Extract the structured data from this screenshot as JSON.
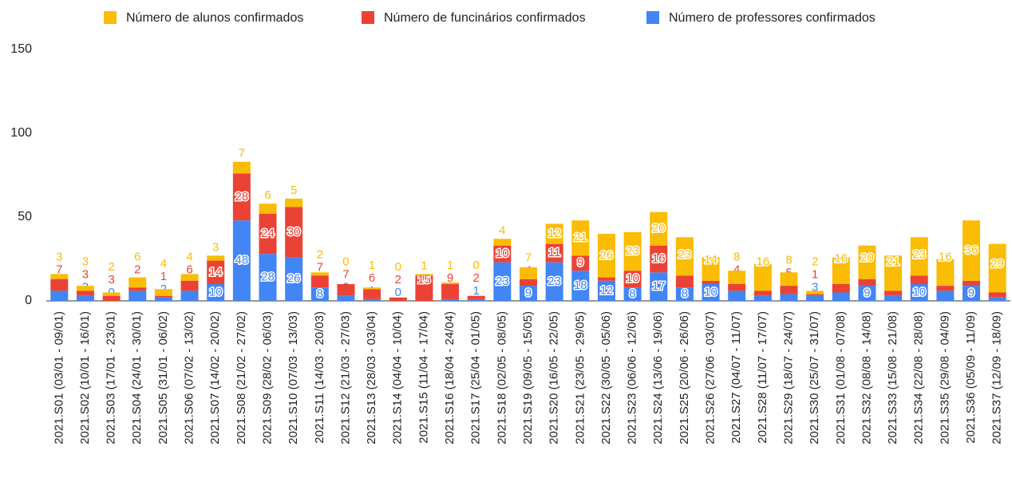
{
  "chart_data": {
    "type": "bar",
    "stacked": true,
    "categories": [
      "2021.S01 (03/01 - 09/01)",
      "2021.S02 (10/01 - 16/01)",
      "2021.S03 (17/01 - 23/01)",
      "2021.S04 (24/01 - 30/01)",
      "2021.S05 (31/01 - 06/02)",
      "2021.S06 (07/02 - 13/02)",
      "2021.S07 (14/02 - 20/02)",
      "2021.S08 (21/02 - 27/02)",
      "2021.S09 (28/02 - 06/03)",
      "2021.S10 (07/03 - 13/03)",
      "2021.S11 (14/03 - 20/03)",
      "2021.S12 (21/03 - 27/03)",
      "2021.S13 (28/03 - 03/04)",
      "2021.S14 (04/04 - 10/04)",
      "2021.S15 (11/04 - 17/04)",
      "2021.S16 (18/04 - 24/04)",
      "2021.S17 (25/04 - 01/05)",
      "2021.S18 (02/05 - 08/05)",
      "2021.S19 (09/05 - 15/05)",
      "2021.S20 (16/05 - 22/05)",
      "2021.S21 (23/05 - 29/05)",
      "2021.S22 (30/05 - 05/06)",
      "2021.S23 (06/06 - 12/06)",
      "2021.S24 (13/06 - 19/06)",
      "2021.S25 (20/06 - 26/06)",
      "2021.S26 (27/06 - 03/07)",
      "2021.S27 (04/07 - 11/07)",
      "2021.S28 (11/07 - 17/07)",
      "2021.S29 (18/07 - 24/07)",
      "2021.S30 (25/07 - 31/07)",
      "2021.S31 (01/08 - 07/08)",
      "2021.S32 (08/08 - 14/08)",
      "2021.S33 (15/08 - 21/08)",
      "2021.S34 (22/08 - 28/08)",
      "2021.S35 (29/08 - 04/09)",
      "2021.S36 (05/09 - 11/09)",
      "2021.S37 (12/09 - 18/09)"
    ],
    "series": [
      {
        "name": "Número de alunos confirmados",
        "color": "#fbbc04",
        "values": [
          3,
          3,
          2,
          6,
          4,
          4,
          3,
          7,
          6,
          5,
          2,
          0,
          1,
          0,
          1,
          1,
          0,
          4,
          7,
          12,
          21,
          26,
          23,
          20,
          23,
          14,
          8,
          16,
          8,
          2,
          16,
          20,
          21,
          23,
          16,
          36,
          29
        ]
      },
      {
        "name": "Número de funcinários confirmados",
        "color": "#ea4335",
        "values": [
          7,
          3,
          3,
          2,
          1,
          6,
          14,
          28,
          24,
          30,
          7,
          7,
          6,
          2,
          15,
          9,
          2,
          10,
          4,
          11,
          9,
          2,
          10,
          16,
          7,
          2,
          4,
          3,
          5,
          1,
          5,
          4,
          3,
          5,
          3,
          3,
          3
        ]
      },
      {
        "name": "Número de professores confirmados",
        "color": "#4285f4",
        "values": [
          6,
          3,
          0,
          6,
          2,
          6,
          10,
          48,
          28,
          26,
          8,
          3,
          1,
          0,
          0,
          1,
          1,
          23,
          9,
          23,
          18,
          12,
          8,
          17,
          8,
          10,
          6,
          3,
          4,
          3,
          5,
          9,
          3,
          10,
          6,
          9,
          2
        ]
      }
    ],
    "ylim": [
      0,
      150
    ],
    "yticks": [
      0,
      50,
      100,
      150
    ],
    "legend": "top"
  }
}
